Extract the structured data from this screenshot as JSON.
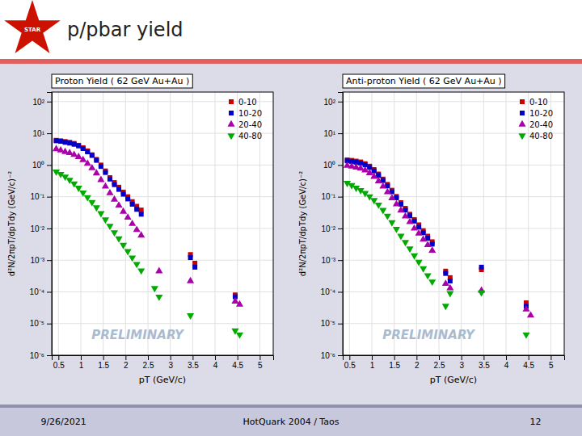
{
  "title": "p/pbar yield",
  "annotations": [
    "STAR",
    "9/26/2021",
    "HotQuark 2004 / Taos",
    "12"
  ],
  "chart_data": [
    {
      "type": "scatter",
      "title": "Proton Yield ( 62 GeV Au+Au )",
      "x_label": "pT (GeV/c)",
      "y_label": "d²N/2πpT/dpTdy (GeV/c)⁻²",
      "log": "y",
      "grid": true,
      "legend": "upper right",
      "annotations": [
        "PRELIMINARY"
      ],
      "xlim": [
        0.35,
        5.3
      ],
      "xticks": [
        0.5,
        1,
        1.5,
        2,
        2.5,
        3,
        3.5,
        4,
        4.5,
        5
      ],
      "ylim": [
        1e-06,
        200
      ],
      "yticks": [
        {
          "value": 1e-06,
          "label": "10⁻⁶"
        },
        {
          "value": 1e-05,
          "label": "10⁻⁵"
        },
        {
          "value": 0.0001,
          "label": "10⁻⁴"
        },
        {
          "value": 0.001,
          "label": "10⁻³"
        },
        {
          "value": 0.01,
          "label": "10⁻²"
        },
        {
          "value": 0.1,
          "label": "10⁻¹"
        },
        {
          "value": 1,
          "label": "10⁰"
        },
        {
          "value": 10,
          "label": "10¹"
        },
        {
          "value": 100,
          "label": "10²"
        }
      ],
      "series": [
        {
          "name": "0-10",
          "color": "#cc0000",
          "marker": "square",
          "x": [
            0.45,
            0.55,
            0.65,
            0.75,
            0.85,
            0.95,
            1.05,
            1.15,
            1.25,
            1.35,
            1.45,
            1.55,
            1.65,
            1.75,
            1.85,
            1.95,
            2.05,
            2.15,
            2.25,
            2.35,
            3.45,
            3.55,
            4.45
          ],
          "values": [
            6.0,
            5.8,
            5.5,
            5.2,
            4.8,
            4.2,
            3.5,
            2.8,
            2.1,
            1.5,
            1.0,
            0.65,
            0.4,
            0.28,
            0.2,
            0.14,
            0.1,
            0.07,
            0.05,
            0.038,
            0.0015,
            0.0008,
            8e-05
          ]
        },
        {
          "name": "10-20",
          "color": "#0000cc",
          "marker": "square",
          "x": [
            0.45,
            0.55,
            0.65,
            0.75,
            0.85,
            0.95,
            1.05,
            1.15,
            1.25,
            1.35,
            1.45,
            1.55,
            1.65,
            1.75,
            1.85,
            1.95,
            2.05,
            2.15,
            2.25,
            2.35,
            3.45,
            3.55,
            4.45
          ],
          "values": [
            5.8,
            5.6,
            5.2,
            4.9,
            4.5,
            4.0,
            3.3,
            2.6,
            2.0,
            1.4,
            0.9,
            0.58,
            0.36,
            0.24,
            0.17,
            0.12,
            0.085,
            0.058,
            0.04,
            0.028,
            0.0012,
            0.0006,
            7e-05
          ]
        },
        {
          "name": "20-40",
          "color": "#aa00aa",
          "marker": "triangle-up",
          "x": [
            0.45,
            0.55,
            0.65,
            0.75,
            0.85,
            0.95,
            1.05,
            1.15,
            1.25,
            1.35,
            1.45,
            1.55,
            1.65,
            1.75,
            1.85,
            1.95,
            2.05,
            2.15,
            2.25,
            2.35,
            2.75,
            3.45,
            4.45,
            4.55
          ],
          "values": [
            3.2,
            2.9,
            2.6,
            2.4,
            2.1,
            1.8,
            1.45,
            1.1,
            0.8,
            0.55,
            0.34,
            0.21,
            0.13,
            0.082,
            0.053,
            0.034,
            0.022,
            0.014,
            0.009,
            0.006,
            0.00045,
            0.00022,
            5e-05,
            4e-05
          ]
        },
        {
          "name": "40-80",
          "color": "#00aa00",
          "marker": "triangle-down",
          "x": [
            0.45,
            0.55,
            0.65,
            0.75,
            0.85,
            0.95,
            1.05,
            1.15,
            1.25,
            1.35,
            1.45,
            1.55,
            1.65,
            1.75,
            1.85,
            1.95,
            2.05,
            2.15,
            2.25,
            2.35,
            2.65,
            2.75,
            3.45,
            4.45,
            4.55
          ],
          "values": [
            0.62,
            0.52,
            0.43,
            0.34,
            0.26,
            0.19,
            0.135,
            0.096,
            0.067,
            0.046,
            0.03,
            0.019,
            0.012,
            0.0075,
            0.0048,
            0.003,
            0.0019,
            0.0012,
            0.00075,
            0.00047,
            0.00013,
            7e-05,
            1.8e-05,
            6e-06,
            4.5e-06
          ]
        }
      ]
    },
    {
      "type": "scatter",
      "title": "Anti-proton Yield ( 62 GeV Au+Au )",
      "x_label": "pT (GeV/c)",
      "y_label": "d²N/2πpT/dpTdy (GeV/c)⁻²",
      "log": "y",
      "grid": true,
      "legend": "upper right",
      "annotations": [
        "PRELIMINARY"
      ],
      "xlim": [
        0.35,
        5.3
      ],
      "xticks": [
        0.5,
        1,
        1.5,
        2,
        2.5,
        3,
        3.5,
        4,
        4.5,
        5
      ],
      "ylim": [
        1e-06,
        200
      ],
      "yticks": [
        {
          "value": 1e-06,
          "label": "10⁻⁶"
        },
        {
          "value": 1e-05,
          "label": "10⁻⁵"
        },
        {
          "value": 0.0001,
          "label": "10⁻⁴"
        },
        {
          "value": 0.001,
          "label": "10⁻³"
        },
        {
          "value": 0.01,
          "label": "10⁻²"
        },
        {
          "value": 0.1,
          "label": "10⁻¹"
        },
        {
          "value": 1,
          "label": "10⁰"
        },
        {
          "value": 10,
          "label": "10¹"
        },
        {
          "value": 100,
          "label": "10²"
        }
      ],
      "series": [
        {
          "name": "0-10",
          "color": "#cc0000",
          "marker": "square",
          "x": [
            0.45,
            0.55,
            0.65,
            0.75,
            0.85,
            0.95,
            1.05,
            1.15,
            1.25,
            1.35,
            1.45,
            1.55,
            1.65,
            1.75,
            1.85,
            1.95,
            2.05,
            2.15,
            2.25,
            2.35,
            2.65,
            2.75,
            3.45,
            4.45
          ],
          "values": [
            1.45,
            1.4,
            1.33,
            1.25,
            1.1,
            0.92,
            0.72,
            0.52,
            0.36,
            0.245,
            0.16,
            0.102,
            0.065,
            0.043,
            0.028,
            0.019,
            0.013,
            0.0085,
            0.0057,
            0.0038,
            0.00045,
            0.00028,
            0.0005,
            4.5e-05
          ]
        },
        {
          "name": "10-20",
          "color": "#0000cc",
          "marker": "square",
          "x": [
            0.45,
            0.55,
            0.65,
            0.75,
            0.85,
            0.95,
            1.05,
            1.15,
            1.25,
            1.35,
            1.45,
            1.55,
            1.65,
            1.75,
            1.85,
            1.95,
            2.05,
            2.15,
            2.25,
            2.35,
            2.65,
            2.75,
            3.45,
            4.45
          ],
          "values": [
            1.35,
            1.3,
            1.22,
            1.15,
            1.01,
            0.84,
            0.65,
            0.47,
            0.325,
            0.22,
            0.143,
            0.092,
            0.058,
            0.038,
            0.025,
            0.017,
            0.011,
            0.0073,
            0.0049,
            0.0032,
            0.00038,
            0.00022,
            0.0006,
            3.5e-05
          ]
        },
        {
          "name": "20-40",
          "color": "#aa00aa",
          "marker": "triangle-up",
          "x": [
            0.45,
            0.55,
            0.65,
            0.75,
            0.85,
            0.95,
            1.05,
            1.15,
            1.25,
            1.35,
            1.45,
            1.55,
            1.65,
            1.75,
            1.85,
            1.95,
            2.05,
            2.15,
            2.25,
            2.35,
            2.65,
            2.75,
            3.45,
            4.45,
            4.55
          ],
          "values": [
            0.95,
            0.9,
            0.84,
            0.78,
            0.68,
            0.56,
            0.43,
            0.31,
            0.21,
            0.14,
            0.09,
            0.058,
            0.037,
            0.024,
            0.016,
            0.01,
            0.0069,
            0.0045,
            0.003,
            0.002,
            0.00018,
            0.00013,
            0.00011,
            2.8e-05,
            1.8e-05
          ]
        },
        {
          "name": "40-80",
          "color": "#00aa00",
          "marker": "triangle-down",
          "x": [
            0.45,
            0.55,
            0.65,
            0.75,
            0.85,
            0.95,
            1.05,
            1.15,
            1.25,
            1.35,
            1.45,
            1.55,
            1.65,
            1.75,
            1.85,
            1.95,
            2.05,
            2.15,
            2.25,
            2.35,
            2.65,
            2.75,
            3.45,
            4.45
          ],
          "values": [
            0.27,
            0.23,
            0.19,
            0.16,
            0.13,
            0.102,
            0.078,
            0.056,
            0.038,
            0.025,
            0.0155,
            0.0096,
            0.0058,
            0.0037,
            0.0023,
            0.0014,
            0.00088,
            0.00055,
            0.00033,
            0.00021,
            3.6e-05,
            9e-05,
            9.5e-05,
            4.5e-06
          ]
        }
      ]
    }
  ]
}
